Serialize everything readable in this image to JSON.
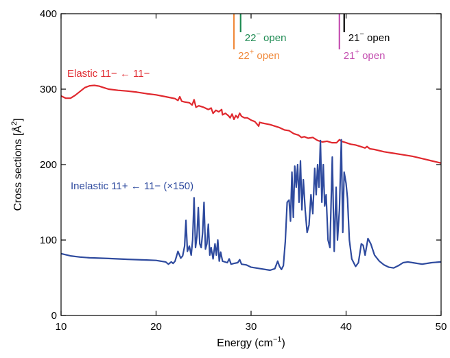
{
  "chart_data": {
    "type": "line",
    "xlabel_base": "Energy (cm",
    "xlabel_sup": "−1",
    "xlabel_end": ")",
    "ylabel_base": "Cross sections [Å",
    "ylabel_sup": "2",
    "ylabel_end": "]",
    "xlim": [
      10,
      50
    ],
    "ylim": [
      0,
      400
    ],
    "xticks": [
      10,
      20,
      30,
      40,
      50
    ],
    "yticks": [
      0,
      100,
      200,
      300,
      400
    ],
    "grid": false,
    "series": [
      {
        "name": "Elastic 11− ← 11−",
        "color": "#e0282e",
        "points": [
          [
            10,
            291
          ],
          [
            10.5,
            288
          ],
          [
            11,
            288
          ],
          [
            11.5,
            292
          ],
          [
            12,
            297
          ],
          [
            12.5,
            302
          ],
          [
            13,
            304.5
          ],
          [
            13.5,
            305
          ],
          [
            14,
            304
          ],
          [
            14.5,
            302
          ],
          [
            15,
            300
          ],
          [
            16,
            298.5
          ],
          [
            17,
            297.5
          ],
          [
            18,
            296
          ],
          [
            19,
            294
          ],
          [
            20,
            292.5
          ],
          [
            21,
            290
          ],
          [
            22,
            287.5
          ],
          [
            22.3,
            285
          ],
          [
            22.5,
            290
          ],
          [
            22.7,
            284
          ],
          [
            23,
            283
          ],
          [
            23.5,
            282
          ],
          [
            23.8,
            279
          ],
          [
            24,
            286
          ],
          [
            24.2,
            276
          ],
          [
            24.5,
            278
          ],
          [
            25,
            276
          ],
          [
            25.5,
            273
          ],
          [
            25.8,
            275
          ],
          [
            26,
            268
          ],
          [
            26.3,
            272
          ],
          [
            26.6,
            270
          ],
          [
            26.9,
            273
          ],
          [
            27,
            266
          ],
          [
            27.3,
            268
          ],
          [
            27.6,
            265
          ],
          [
            27.8,
            262
          ],
          [
            28,
            267
          ],
          [
            28.2,
            260
          ],
          [
            28.4,
            265
          ],
          [
            28.6,
            262
          ],
          [
            28.8,
            268
          ],
          [
            29,
            264
          ],
          [
            29.3,
            262
          ],
          [
            29.6,
            262
          ],
          [
            30,
            259
          ],
          [
            30.4,
            257
          ],
          [
            30.6,
            254
          ],
          [
            30.8,
            251
          ],
          [
            30.9,
            256
          ],
          [
            31.2,
            255
          ],
          [
            32,
            253
          ],
          [
            33,
            249
          ],
          [
            33.5,
            246
          ],
          [
            34,
            245
          ],
          [
            34.5,
            241
          ],
          [
            35,
            239
          ],
          [
            35.3,
            236
          ],
          [
            35.6,
            237
          ],
          [
            36,
            235
          ],
          [
            36.5,
            236
          ],
          [
            37,
            232
          ],
          [
            37.5,
            230
          ],
          [
            38,
            231
          ],
          [
            38.5,
            229
          ],
          [
            39,
            229
          ],
          [
            39.3,
            233
          ],
          [
            39.5,
            231
          ],
          [
            40,
            229
          ],
          [
            40.5,
            227
          ],
          [
            41,
            226
          ],
          [
            41.5,
            224
          ],
          [
            42,
            222
          ],
          [
            42.2,
            224
          ],
          [
            42.5,
            221
          ],
          [
            43,
            220
          ],
          [
            44,
            217
          ],
          [
            45,
            215
          ],
          [
            46,
            213
          ],
          [
            47,
            211
          ],
          [
            48,
            208
          ],
          [
            49,
            205
          ],
          [
            50,
            202
          ]
        ]
      },
      {
        "name": "Inelastic 11+ ← 11− (×150)",
        "color": "#2e4a9e",
        "points": [
          [
            10,
            82
          ],
          [
            11,
            79
          ],
          [
            12,
            77.5
          ],
          [
            13,
            76.5
          ],
          [
            14,
            76
          ],
          [
            15,
            75.5
          ],
          [
            16,
            75
          ],
          [
            17,
            74.5
          ],
          [
            18,
            74
          ],
          [
            19,
            73.5
          ],
          [
            20,
            73
          ],
          [
            21,
            71
          ],
          [
            21.3,
            68
          ],
          [
            21.6,
            71
          ],
          [
            21.8,
            69
          ],
          [
            22,
            72
          ],
          [
            22.3,
            85
          ],
          [
            22.6,
            76
          ],
          [
            22.8,
            79
          ],
          [
            23,
            92
          ],
          [
            23.15,
            126
          ],
          [
            23.3,
            85
          ],
          [
            23.5,
            92
          ],
          [
            23.7,
            80
          ],
          [
            23.85,
            100
          ],
          [
            24,
            156
          ],
          [
            24.15,
            90
          ],
          [
            24.3,
            105
          ],
          [
            24.45,
            143
          ],
          [
            24.6,
            95
          ],
          [
            24.75,
            90
          ],
          [
            24.9,
            110
          ],
          [
            25.05,
            150
          ],
          [
            25.2,
            88
          ],
          [
            25.35,
            95
          ],
          [
            25.5,
            121
          ],
          [
            25.65,
            80
          ],
          [
            25.8,
            90
          ],
          [
            26,
            75
          ],
          [
            26.2,
            95
          ],
          [
            26.35,
            80
          ],
          [
            26.5,
            100
          ],
          [
            26.65,
            72
          ],
          [
            26.8,
            84
          ],
          [
            27,
            72
          ],
          [
            27.5,
            70
          ],
          [
            27.7,
            75
          ],
          [
            27.9,
            68
          ],
          [
            28.2,
            69
          ],
          [
            28.6,
            70
          ],
          [
            28.8,
            74
          ],
          [
            29,
            68
          ],
          [
            29.5,
            67
          ],
          [
            30,
            64
          ],
          [
            31,
            62
          ],
          [
            32,
            60
          ],
          [
            32.5,
            62
          ],
          [
            32.8,
            72
          ],
          [
            33,
            65
          ],
          [
            33.2,
            61
          ],
          [
            33.4,
            66
          ],
          [
            33.6,
            98
          ],
          [
            33.8,
            150
          ],
          [
            34,
            153
          ],
          [
            34.15,
            125
          ],
          [
            34.3,
            190
          ],
          [
            34.45,
            130
          ],
          [
            34.6,
            198
          ],
          [
            34.75,
            170
          ],
          [
            34.9,
            200
          ],
          [
            35.05,
            150
          ],
          [
            35.2,
            205
          ],
          [
            35.35,
            140
          ],
          [
            35.5,
            180
          ],
          [
            35.7,
            140
          ],
          [
            35.9,
            110
          ],
          [
            36.1,
            120
          ],
          [
            36.3,
            160
          ],
          [
            36.5,
            135
          ],
          [
            36.7,
            195
          ],
          [
            36.85,
            160
          ],
          [
            37,
            200
          ],
          [
            37.15,
            170
          ],
          [
            37.3,
            232
          ],
          [
            37.45,
            150
          ],
          [
            37.6,
            200
          ],
          [
            37.75,
            145
          ],
          [
            37.9,
            160
          ],
          [
            38.1,
            100
          ],
          [
            38.3,
            90
          ],
          [
            38.55,
            210
          ],
          [
            38.75,
            85
          ],
          [
            38.95,
            170
          ],
          [
            39.1,
            100
          ],
          [
            39.3,
            140
          ],
          [
            39.5,
            233
          ],
          [
            39.65,
            110
          ],
          [
            39.8,
            190
          ],
          [
            40,
            175
          ],
          [
            40.15,
            155
          ],
          [
            40.35,
            100
          ],
          [
            40.6,
            75
          ],
          [
            41,
            65
          ],
          [
            41.3,
            70
          ],
          [
            41.6,
            95
          ],
          [
            41.8,
            93
          ],
          [
            42,
            80
          ],
          [
            42.3,
            102
          ],
          [
            42.6,
            95
          ],
          [
            43,
            80
          ],
          [
            43.5,
            72
          ],
          [
            44,
            67
          ],
          [
            44.5,
            64
          ],
          [
            45,
            63
          ],
          [
            45.5,
            66
          ],
          [
            46,
            70
          ],
          [
            46.5,
            71
          ],
          [
            47,
            70
          ],
          [
            48,
            68
          ],
          [
            49,
            70
          ],
          [
            50,
            71
          ]
        ]
      }
    ],
    "thresholds": [
      {
        "x": 28.2,
        "color": "#f08a3c",
        "lower": true,
        "label_base": "22",
        "label_sup": "+",
        "label_end": " open"
      },
      {
        "x": 28.9,
        "color": "#1e8a52",
        "lower": false,
        "label_base": "22",
        "label_sup": "−",
        "label_end": " open"
      },
      {
        "x": 39.3,
        "color": "#c44fb0",
        "lower": true,
        "label_base": "21",
        "label_sup": "+",
        "label_end": " open"
      },
      {
        "x": 39.8,
        "color": "#000000",
        "lower": false,
        "label_base": "21",
        "label_sup": "−",
        "label_end": " open"
      }
    ]
  }
}
